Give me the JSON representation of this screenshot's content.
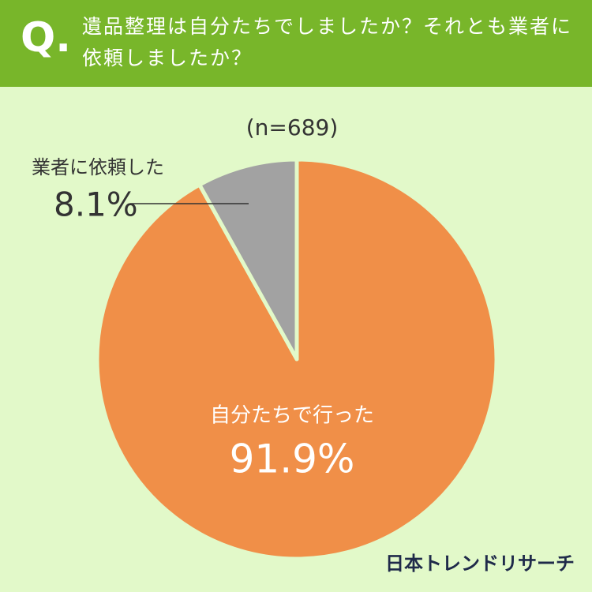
{
  "header": {
    "icon": "Q.",
    "title": "遺品整理は自分たちでしましたか？それとも業者に依頼しましたか？"
  },
  "chart_data": {
    "type": "pie",
    "note": "(n=689)",
    "categories": [
      "自分たちで行った",
      "業者に依頼した"
    ],
    "values": [
      91.9,
      8.1
    ],
    "value_labels": [
      "91.9%",
      "8.1%"
    ],
    "colors": [
      "#f08f48",
      "#a2a2a2"
    ]
  },
  "footer": {
    "brand": "日本トレンドリサーチ"
  }
}
